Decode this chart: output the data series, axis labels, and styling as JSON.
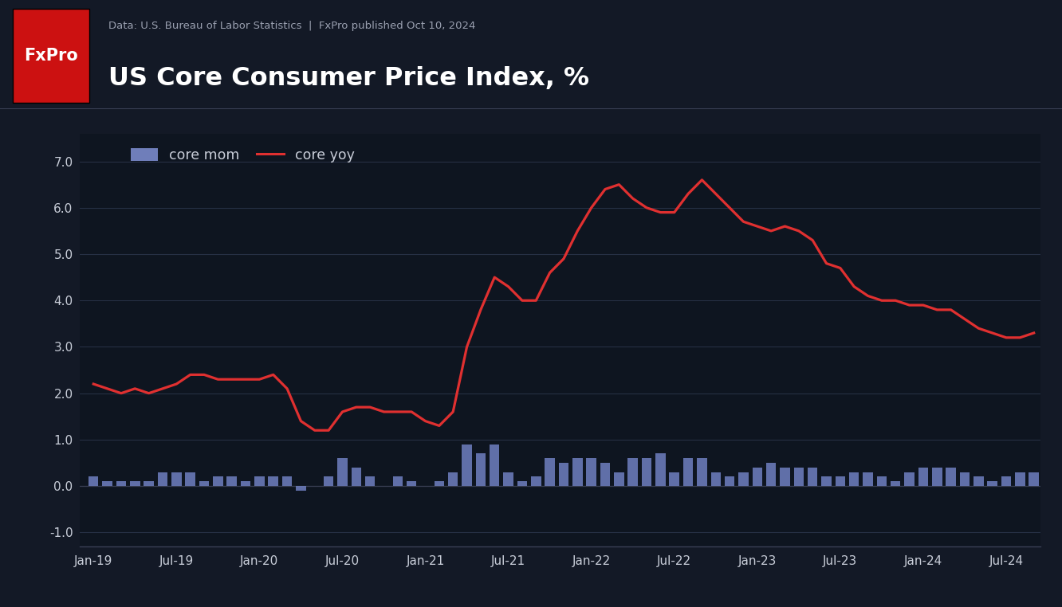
{
  "title": "US Core Consumer Price Index, %",
  "subtitle": "Data: U.S. Bureau of Labor Statistics  |  FxPro published Oct 10, 2024",
  "bg_color": "#131926",
  "header_bg": "#1c2333",
  "plot_bg": "#0e1520",
  "grid_color": "#263044",
  "text_color": "#c8cdd8",
  "title_color": "#ffffff",
  "fxpro_bg": "#cc1111",
  "fxpro_text": "#ffffff",
  "bar_color": "#6a7ab8",
  "line_color": "#e03030",
  "legend_bar_color": "#7a8acc",
  "ylim": [
    -1.3,
    7.6
  ],
  "yticks": [
    -1.0,
    0.0,
    1.0,
    2.0,
    3.0,
    4.0,
    5.0,
    6.0,
    7.0
  ],
  "yoy_values": [
    2.2,
    2.1,
    2.0,
    2.1,
    2.0,
    2.1,
    2.2,
    2.4,
    2.4,
    2.3,
    2.3,
    2.3,
    2.3,
    2.4,
    2.1,
    1.4,
    1.2,
    1.2,
    1.6,
    1.7,
    1.7,
    1.6,
    1.6,
    1.6,
    1.4,
    1.3,
    1.6,
    3.0,
    3.8,
    4.5,
    4.3,
    4.0,
    4.0,
    4.6,
    4.9,
    5.5,
    6.0,
    6.4,
    6.5,
    6.2,
    6.0,
    5.9,
    5.9,
    6.3,
    6.6,
    6.3,
    6.0,
    5.7,
    5.6,
    5.5,
    5.6,
    5.5,
    5.3,
    4.8,
    4.7,
    4.3,
    4.1,
    4.0,
    4.0,
    3.9,
    3.9,
    3.8,
    3.8,
    3.6,
    3.4,
    3.3,
    3.2,
    3.2,
    3.3
  ],
  "mom_values": [
    0.2,
    0.1,
    0.1,
    0.1,
    0.1,
    0.3,
    0.3,
    0.3,
    0.1,
    0.2,
    0.2,
    0.1,
    0.2,
    0.2,
    0.2,
    -0.1,
    0.0,
    0.2,
    0.6,
    0.4,
    0.2,
    0.0,
    0.2,
    0.1,
    0.0,
    0.1,
    0.3,
    0.9,
    0.7,
    0.9,
    0.3,
    0.1,
    0.2,
    0.6,
    0.5,
    0.6,
    0.6,
    0.5,
    0.3,
    0.6,
    0.6,
    0.7,
    0.3,
    0.6,
    0.6,
    0.3,
    0.2,
    0.3,
    0.4,
    0.5,
    0.4,
    0.4,
    0.4,
    0.2,
    0.2,
    0.3,
    0.3,
    0.2,
    0.1,
    0.3,
    0.4,
    0.4,
    0.4,
    0.3,
    0.2,
    0.1,
    0.2,
    0.3,
    0.3
  ],
  "xtick_labels": [
    "Jan-19",
    "Jul-19",
    "Jan-20",
    "Jul-20",
    "Jan-21",
    "Jul-21",
    "Jan-22",
    "Jul-22",
    "Jan-23",
    "Jul-23",
    "Jan-24",
    "Jul-24"
  ],
  "xtick_positions": [
    0,
    6,
    12,
    18,
    24,
    30,
    36,
    42,
    48,
    54,
    60,
    66
  ]
}
